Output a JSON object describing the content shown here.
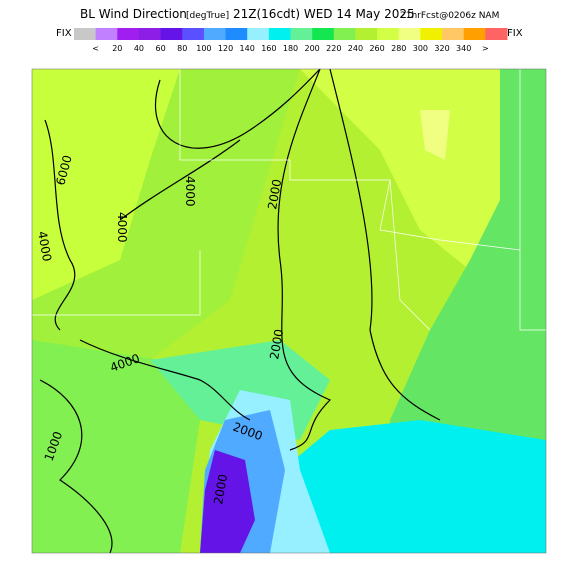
{
  "header": {
    "title": "BL Wind Direction",
    "units": "[degTrue]",
    "valid": "21Z(16cdt) WED 14 May 2025",
    "forecast": "21hrFcst@0206z NAM"
  },
  "colorbar": {
    "left_label": "FIX",
    "right_label": "FIX",
    "labels": [
      "<",
      "20",
      "40",
      "60",
      "80",
      "100",
      "120",
      "140",
      "160",
      "180",
      "200",
      "220",
      "240",
      "260",
      "280",
      "300",
      "320",
      "340",
      ">"
    ],
    "colors": [
      "#c8c8c8",
      "#c080ff",
      "#a01ef0",
      "#8c1ee6",
      "#6414e6",
      "#5a50ff",
      "#50aaff",
      "#1e8cff",
      "#96f0ff",
      "#00f0f0",
      "#64f096",
      "#14e650",
      "#82f050",
      "#b4f032",
      "#d2ff46",
      "#f0ff82",
      "#f0f000",
      "#ffc864",
      "#ffa000",
      "#ff6464"
    ]
  },
  "contour_labels": [
    "6000",
    "4000",
    "4000",
    "2000",
    "2000",
    "4000",
    "2000",
    "1000",
    "2000",
    "4000"
  ]
}
